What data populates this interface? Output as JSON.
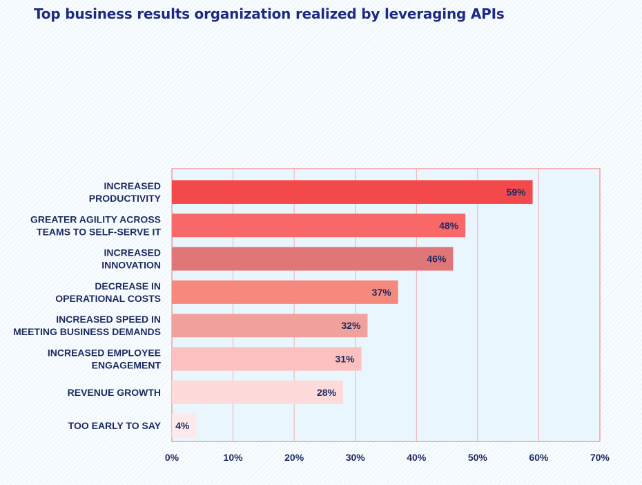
{
  "chart_data": {
    "type": "bar",
    "orientation": "horizontal",
    "title": "Top business results organization realized by leveraging APIs",
    "categories": [
      [
        "INCREASED",
        "PRODUCTIVITY"
      ],
      [
        "GREATER AGILITY ACROSS",
        "TEAMS TO SELF-SERVE IT"
      ],
      [
        "INCREASED",
        "INNOVATION"
      ],
      [
        "DECREASE IN",
        "OPERATIONAL COSTS"
      ],
      [
        "INCREASED SPEED IN",
        "MEETING BUSINESS DEMANDS"
      ],
      [
        "INCREASED EMPLOYEE",
        "ENGAGEMENT"
      ],
      [
        "REVENUE GROWTH"
      ],
      [
        "TOO EARLY TO SAY"
      ]
    ],
    "values": [
      59,
      48,
      46,
      37,
      32,
      31,
      28,
      4
    ],
    "value_labels": [
      "59%",
      "48%",
      "46%",
      "37%",
      "32%",
      "31%",
      "28%",
      "4%"
    ],
    "bar_colors": [
      "#f3494b",
      "#f86868",
      "#df7778",
      "#f6897d",
      "#f1a19c",
      "#fcc0c0",
      "#fedadb",
      "#fde8ea"
    ],
    "x_ticks": [
      0,
      10,
      20,
      30,
      40,
      50,
      60,
      70
    ],
    "x_tick_labels": [
      "0%",
      "10%",
      "20%",
      "30%",
      "40%",
      "50%",
      "60%",
      "70%"
    ],
    "xlim": [
      0,
      70
    ],
    "xlabel": "",
    "ylabel": "",
    "grid": true,
    "colors": {
      "plot_background": "#e9f6fd",
      "plot_border": "#f08a8a",
      "grid": "#f1a5a5",
      "text": "#1c2a5e",
      "title": "#1c2a82"
    }
  }
}
